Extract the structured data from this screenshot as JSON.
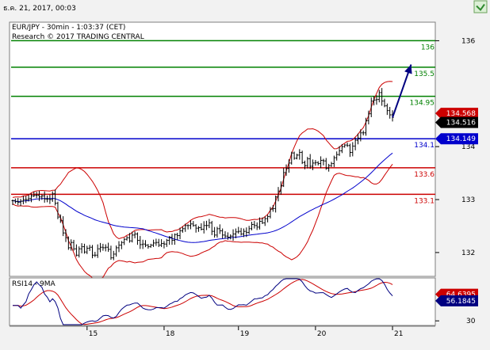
{
  "header": {
    "timestamp": "ธ.ค. 21, 2017, 00:03"
  },
  "chart_data": [
    {
      "type": "candlestick",
      "title": "EUR/JPY - 30min - 1:03:37 (CET)",
      "subtitle": "Research © 2017 TRADING CENTRAL",
      "ylim": [
        131.55,
        136.35
      ],
      "y_ticks": [
        {
          "value": 132,
          "label": "132"
        },
        {
          "value": 133,
          "label": "133"
        },
        {
          "value": 136,
          "label": "136"
        }
      ],
      "y_tick_partial": {
        "value": 134,
        "label": "134"
      },
      "x_ticks": [
        {
          "index": 28,
          "label": "15"
        },
        {
          "index": 57,
          "label": "18"
        },
        {
          "index": 85,
          "label": "19"
        },
        {
          "index": 114,
          "label": "20"
        },
        {
          "index": 143,
          "label": "21"
        }
      ],
      "levels": [
        {
          "value": 136.0,
          "label": "136",
          "color": "#008000"
        },
        {
          "value": 135.5,
          "label": "135.5",
          "color": "#008000"
        },
        {
          "value": 134.95,
          "label": "134.95",
          "color": "#008000"
        },
        {
          "value": 134.149,
          "label": "134.1",
          "color": "#0000cc"
        },
        {
          "value": 133.6,
          "label": "133.6",
          "color": "#cc0000"
        },
        {
          "value": 133.1,
          "label": "133.1",
          "color": "#cc0000"
        }
      ],
      "price_tags": [
        {
          "value": 134.568,
          "label": "134.568",
          "color": "#cc0000"
        },
        {
          "value": 134.516,
          "label": "134.516",
          "color": "#000000"
        },
        {
          "value": 134.149,
          "label": "134.149",
          "color": "#0000cc"
        }
      ],
      "projection": {
        "from": [
          143,
          134.55
        ],
        "to": [
          150,
          135.55
        ],
        "color": "#000080"
      },
      "close_series": [
        132.98,
        132.96,
        132.95,
        132.97,
        133.0,
        133.0,
        133.02,
        133.07,
        133.08,
        133.08,
        133.05,
        133.07,
        133.01,
        133.01,
        133.0,
        133.11,
        132.93,
        132.67,
        132.6,
        132.37,
        132.28,
        132.09,
        132.19,
        132.07,
        131.95,
        132.07,
        132.11,
        132.01,
        132.08,
        132.1,
        131.95,
        131.95,
        132.07,
        132.1,
        132.09,
        132.1,
        132.06,
        131.9,
        131.97,
        132.09,
        132.14,
        132.19,
        132.25,
        132.28,
        132.22,
        132.33,
        132.35,
        132.23,
        132.15,
        132.16,
        132.14,
        132.11,
        132.14,
        132.18,
        132.19,
        132.14,
        132.17,
        132.16,
        132.23,
        132.29,
        132.23,
        132.34,
        132.32,
        132.41,
        132.45,
        132.51,
        132.51,
        132.54,
        132.51,
        132.46,
        132.47,
        132.44,
        132.51,
        132.51,
        132.56,
        132.4,
        132.33,
        132.45,
        132.41,
        132.33,
        132.31,
        132.29,
        132.31,
        132.35,
        132.39,
        132.4,
        132.35,
        132.4,
        132.38,
        132.45,
        132.53,
        132.51,
        132.48,
        132.59,
        132.56,
        132.64,
        132.68,
        132.82,
        132.83,
        133.05,
        133.16,
        133.26,
        133.51,
        133.59,
        133.69,
        133.88,
        133.78,
        133.84,
        133.89,
        133.7,
        133.64,
        133.77,
        133.63,
        133.69,
        133.7,
        133.68,
        133.74,
        133.73,
        133.59,
        133.64,
        133.68,
        133.79,
        133.85,
        133.92,
        134.0,
        134.03,
        134.02,
        133.89,
        134.01,
        134.12,
        134.16,
        134.26,
        134.26,
        134.49,
        134.62,
        134.86,
        134.88,
        134.89,
        135.02,
        134.86,
        134.77,
        134.68,
        134.6,
        134.55
      ],
      "rsi": {
        "label": "RSI14 - 9MA",
        "ylim": [
          24,
          86
        ],
        "y_ticks": [
          {
            "value": 30,
            "label": "30"
          }
        ],
        "tags": [
          {
            "value": 64.6395,
            "label": "64.6395",
            "color": "#cc0000"
          },
          {
            "value": 56.1845,
            "label": "56.1845",
            "color": "#000080"
          }
        ]
      },
      "colors": {
        "price": "#000000",
        "bollinger": "#cc0000",
        "moving_average": "#0000cc",
        "rsi": "#000080",
        "rsi_ma": "#cc0000"
      }
    }
  ]
}
